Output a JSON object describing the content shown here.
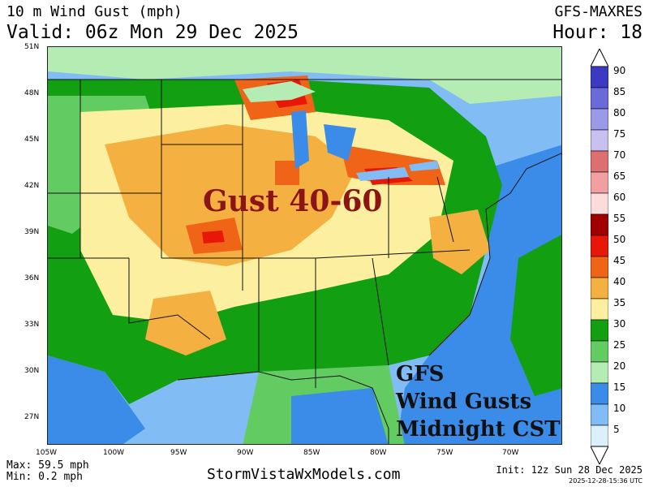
{
  "header": {
    "title": "10 m Wind Gust (mph)",
    "valid": "Valid: 06z Mon 29 Dec 2025",
    "model": "GFS-MAXRES",
    "hour": "Hour: 18"
  },
  "map": {
    "lat_labels": [
      "51N",
      "48N",
      "45N",
      "42N",
      "39N",
      "36N",
      "33N",
      "30N",
      "27N"
    ],
    "lon_labels": [
      "105W",
      "100W",
      "95W",
      "90W",
      "85W",
      "80W",
      "75W",
      "70W"
    ],
    "annotations": {
      "gust": "Gust 40-60",
      "gfs_line1": "GFS",
      "gfs_line2": "Wind Gusts",
      "gfs_line3": "Midnight CST"
    }
  },
  "legend": {
    "labels": [
      "90",
      "85",
      "80",
      "75",
      "70",
      "65",
      "60",
      "55",
      "50",
      "45",
      "40",
      "35",
      "30",
      "25",
      "20",
      "15",
      "10",
      "5"
    ],
    "colors": [
      "#3a3ac2",
      "#6a6ad8",
      "#9a9ae8",
      "#c8c0f0",
      "#dc7070",
      "#f0a0a0",
      "#fadcdc",
      "#a00000",
      "#e81808",
      "#f06418",
      "#f4b040",
      "#fcf0a0",
      "#12a012",
      "#62cc62",
      "#b4ecb4",
      "#3a8ce8",
      "#82bcf4",
      "#dcf0fc"
    ]
  },
  "footer": {
    "max": "Max: 59.5 mph",
    "min": "Min: 0.2 mph",
    "site": "StormVistaWxModels.com",
    "init": "Init: 12z Sun 28 Dec 2025",
    "stamp": "2025-12-28-15:36 UTC"
  }
}
